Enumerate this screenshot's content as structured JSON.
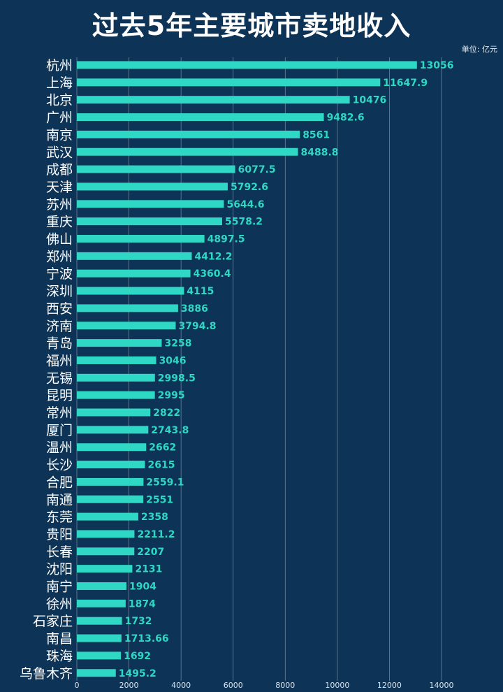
{
  "title": "过去5年主要城市卖地收入",
  "unit": "单位: 亿元",
  "colors": {
    "background": "#0d3356",
    "bar": "#2fd8c4",
    "grid": "#6f87a0"
  },
  "chart_data": {
    "type": "bar",
    "orientation": "horizontal",
    "title": "过去5年主要城市卖地收入",
    "xlabel": "",
    "ylabel": "",
    "xlim": [
      0,
      14000
    ],
    "xticks": [
      0,
      2000,
      4000,
      6000,
      8000,
      10000,
      12000,
      14000
    ],
    "grid": true,
    "categories": [
      "杭州",
      "上海",
      "北京",
      "广州",
      "南京",
      "武汉",
      "成都",
      "天津",
      "苏州",
      "重庆",
      "佛山",
      "郑州",
      "宁波",
      "深圳",
      "西安",
      "济南",
      "青岛",
      "福州",
      "无锡",
      "昆明",
      "常州",
      "厦门",
      "温州",
      "长沙",
      "合肥",
      "南通",
      "东莞",
      "贵阳",
      "长春",
      "沈阳",
      "南宁",
      "徐州",
      "石家庄",
      "南昌",
      "珠海",
      "乌鲁木齐"
    ],
    "values": [
      13056,
      11647.9,
      10476,
      9482.6,
      8561,
      8488.8,
      6077.5,
      5792.6,
      5644.6,
      5578.2,
      4897.5,
      4412.2,
      4360.4,
      4115,
      3886,
      3794.8,
      3258,
      3046,
      2998.5,
      2995,
      2822,
      2743.8,
      2662,
      2615,
      2559.1,
      2551,
      2358,
      2211.2,
      2207,
      2131,
      1904,
      1874,
      1732,
      1713.66,
      1692,
      1495.2
    ],
    "value_labels": [
      "13056",
      "11647.9",
      "10476",
      "9482.6",
      "8561",
      "8488.8",
      "6077.5",
      "5792.6",
      "5644.6",
      "5578.2",
      "4897.5",
      "4412.2",
      "4360.4",
      "4115",
      "3886",
      "3794.8",
      "3258",
      "3046",
      "2998.5",
      "2995",
      "2822",
      "2743.8",
      "2662",
      "2615",
      "2559.1",
      "2551",
      "2358",
      "2211.2",
      "2207",
      "2131",
      "1904",
      "1874",
      "1732",
      "1713.66",
      "1692",
      "1495.2"
    ]
  }
}
